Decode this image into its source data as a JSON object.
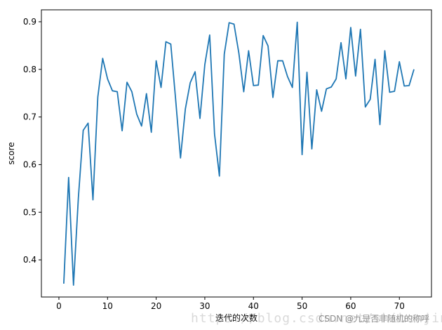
{
  "chart_data": {
    "type": "line",
    "title": "",
    "xlabel": "迭代的次数",
    "ylabel": "score",
    "xlim": [
      -3.6,
      76.6
    ],
    "ylim": [
      0.322,
      0.925
    ],
    "xticks": [
      0,
      10,
      20,
      30,
      40,
      50,
      60,
      70
    ],
    "yticks": [
      0.4,
      0.5,
      0.6,
      0.7,
      0.8,
      0.9
    ],
    "grid": false,
    "legend": "none",
    "line_color": "#1f77b4",
    "x": [
      1,
      2,
      3,
      4,
      5,
      6,
      7,
      8,
      9,
      10,
      11,
      12,
      13,
      14,
      15,
      16,
      17,
      18,
      19,
      20,
      21,
      22,
      23,
      24,
      25,
      26,
      27,
      28,
      29,
      30,
      31,
      32,
      33,
      34,
      35,
      36,
      37,
      38,
      39,
      40,
      41,
      42,
      43,
      44,
      45,
      46,
      47,
      48,
      49,
      50,
      51,
      52,
      53,
      54,
      55,
      56,
      57,
      58,
      59,
      60,
      61,
      62,
      63,
      64,
      65,
      66,
      67,
      68,
      69,
      70,
      71,
      72,
      73
    ],
    "y": [
      0.35,
      0.573,
      0.347,
      0.53,
      0.672,
      0.687,
      0.526,
      0.742,
      0.823,
      0.78,
      0.755,
      0.753,
      0.671,
      0.773,
      0.753,
      0.706,
      0.681,
      0.749,
      0.668,
      0.818,
      0.762,
      0.858,
      0.853,
      0.737,
      0.614,
      0.717,
      0.772,
      0.795,
      0.697,
      0.81,
      0.872,
      0.664,
      0.576,
      0.832,
      0.898,
      0.895,
      0.834,
      0.753,
      0.839,
      0.766,
      0.767,
      0.871,
      0.849,
      0.741,
      0.818,
      0.818,
      0.785,
      0.762,
      0.899,
      0.621,
      0.794,
      0.633,
      0.757,
      0.712,
      0.759,
      0.763,
      0.78,
      0.856,
      0.78,
      0.888,
      0.786,
      0.884,
      0.721,
      0.737,
      0.821,
      0.684,
      0.839,
      0.752,
      0.754,
      0.816,
      0.765,
      0.766,
      0.8
    ]
  },
  "watermark": {
    "text": "CSDN @九是否非随机的称呼",
    "faint_text": "https://blog.csdn.net/shibenjingzhe"
  }
}
